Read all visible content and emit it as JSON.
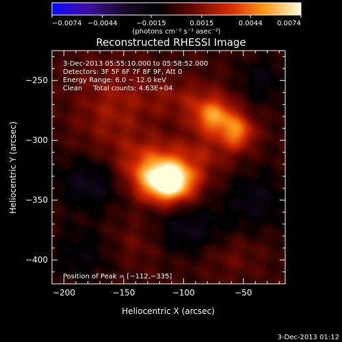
{
  "colorbar": {
    "ticks": [
      {
        "value": -0.0074,
        "label": "−0.0074"
      },
      {
        "value": -0.0044,
        "label": "−0.0044"
      },
      {
        "value": -0.0015,
        "label": "−0.0015"
      },
      {
        "value": 0.0015,
        "label": "0.0015"
      },
      {
        "value": 0.0044,
        "label": "0.0044"
      },
      {
        "value": 0.0074,
        "label": "0.0074"
      }
    ],
    "range": [
      -0.0074,
      0.0074
    ],
    "unit_label": "(photons cm⁻² s⁻¹ asec⁻²)",
    "colors": [
      "#0a0aff",
      "#3f0fa0",
      "#1c0b2e",
      "#000000",
      "#6a0800",
      "#d62a00",
      "#ff9a1a",
      "#ffffd9"
    ]
  },
  "chart_data": {
    "type": "heatmap",
    "title": "Reconstructed RHESSI Image",
    "xlabel": "Heliocentric X (arcsec)",
    "ylabel": "Heliocentric Y (arcsec)",
    "xlim": [
      -210,
      -15
    ],
    "ylim": [
      -420,
      -225
    ],
    "x_ticks": [
      {
        "value": -200,
        "label": "−200"
      },
      {
        "value": -150,
        "label": "−150"
      },
      {
        "value": -100,
        "label": "−100"
      },
      {
        "value": -50,
        "label": "−50"
      }
    ],
    "y_ticks": [
      {
        "value": -250,
        "label": "−250"
      },
      {
        "value": -300,
        "label": "−300"
      },
      {
        "value": -350,
        "label": "−350"
      },
      {
        "value": -400,
        "label": "−400"
      }
    ],
    "sources": [
      {
        "x": -112,
        "y": -335,
        "sx": 14,
        "sy": 11,
        "amp": 0.0074
      },
      {
        "x": -125,
        "y": -325,
        "sx": 22,
        "sy": 16,
        "amp": 0.0042
      },
      {
        "x": -75,
        "y": -280,
        "sx": 12,
        "sy": 10,
        "amp": 0.0046
      },
      {
        "x": -55,
        "y": -293,
        "sx": 10,
        "sy": 10,
        "amp": 0.0042
      },
      {
        "x": -100,
        "y": -265,
        "sx": 26,
        "sy": 12,
        "amp": 0.0016
      },
      {
        "x": -160,
        "y": -275,
        "sx": 22,
        "sy": 28,
        "amp": 0.0018
      },
      {
        "x": -80,
        "y": -310,
        "sx": 18,
        "sy": 14,
        "amp": 0.0015
      },
      {
        "x": -175,
        "y": -335,
        "sx": 22,
        "sy": 16,
        "amp": -0.0024
      },
      {
        "x": -95,
        "y": -375,
        "sx": 22,
        "sy": 14,
        "amp": -0.002
      },
      {
        "x": -40,
        "y": -350,
        "sx": 20,
        "sy": 18,
        "amp": -0.0018
      },
      {
        "x": -35,
        "y": -250,
        "sx": 14,
        "sy": 14,
        "amp": -0.0016
      },
      {
        "x": -185,
        "y": -395,
        "sx": 18,
        "sy": 16,
        "amp": -0.0015
      },
      {
        "x": -140,
        "y": -385,
        "sx": 16,
        "sy": 14,
        "amp": 0.001
      },
      {
        "x": -60,
        "y": -395,
        "sx": 18,
        "sy": 14,
        "amp": 0.0009
      }
    ],
    "annotations": [
      "3-Dec-2013 05:55:10.000 to 05:58:52.000",
      "Detectors: 3F 5F 6F 7F 8F 9F, Att 0",
      "Energy Range: 6.0 − 12.0 keV",
      "Clean     Total counts: 4.63E+04"
    ],
    "peak_label": "Position of Peak = [−112,−335]"
  },
  "footer": {
    "timestamp": "3-Dec-2013 01:12"
  }
}
